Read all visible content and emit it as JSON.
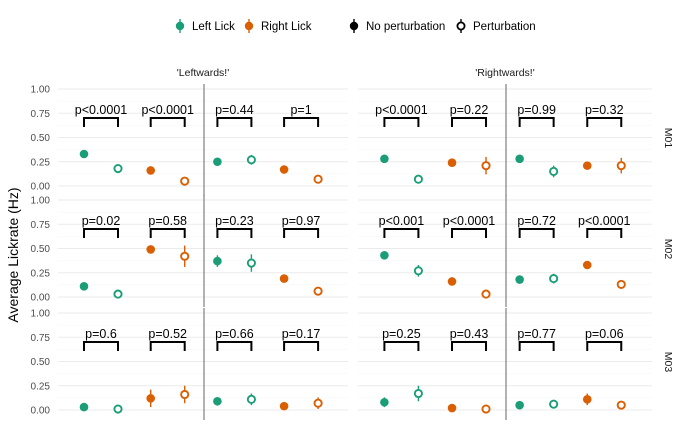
{
  "chart_data": {
    "type": "scatter",
    "ylabel": "Average Lickrate (Hz)",
    "yticks": [
      0,
      0.25,
      0.5,
      0.75,
      1.0
    ],
    "ytick_labels": [
      "0.00",
      "0.25",
      "0.50",
      "0.75",
      "1.00"
    ],
    "ylim": [
      0,
      1.0
    ],
    "grid": true,
    "legend_position": "top",
    "legend": {
      "colour_entries": [
        {
          "label": "Left Lick",
          "color": "#1b9e77"
        },
        {
          "label": "Right Lick",
          "color": "#d95f02"
        }
      ],
      "shape_entries": [
        {
          "label": "No perturbation",
          "marker": "filled"
        },
        {
          "label": "Perturbation",
          "marker": "open"
        }
      ]
    },
    "columns": [
      "'Leftwards!'",
      "'Rightwards!'"
    ],
    "rows": [
      "M01",
      "M02",
      "M03"
    ],
    "panels": [
      {
        "row": "M01",
        "column": "'Leftwards!'",
        "groups": [
          {
            "p": "p<0.0001",
            "lick": "Left Lick",
            "no_perturbation": 0.33,
            "perturbation": 0.18,
            "err_no": 0.02,
            "err_pert": 0.03
          },
          {
            "p": "p<0.0001",
            "lick": "Right Lick",
            "no_perturbation": 0.16,
            "perturbation": 0.05,
            "err_no": 0.02,
            "err_pert": 0.02
          },
          {
            "p": "p=0.44",
            "lick": "Left Lick",
            "no_perturbation": 0.25,
            "perturbation": 0.27,
            "err_no": 0.02,
            "err_pert": 0.05
          },
          {
            "p": "p=1",
            "lick": "Right Lick",
            "no_perturbation": 0.17,
            "perturbation": 0.07,
            "err_no": 0.02,
            "err_pert": 0.02
          }
        ]
      },
      {
        "row": "M01",
        "column": "'Rightwards!'",
        "groups": [
          {
            "p": "p<0.0001",
            "lick": "Left Lick",
            "no_perturbation": 0.28,
            "perturbation": 0.07,
            "err_no": 0.02,
            "err_pert": 0.03
          },
          {
            "p": "p=0.22",
            "lick": "Right Lick",
            "no_perturbation": 0.24,
            "perturbation": 0.21,
            "err_no": 0.02,
            "err_pert": 0.09
          },
          {
            "p": "p=0.99",
            "lick": "Left Lick",
            "no_perturbation": 0.28,
            "perturbation": 0.15,
            "err_no": 0.03,
            "err_pert": 0.06
          },
          {
            "p": "p=0.32",
            "lick": "Right Lick",
            "no_perturbation": 0.21,
            "perturbation": 0.21,
            "err_no": 0.02,
            "err_pert": 0.08
          }
        ]
      },
      {
        "row": "M02",
        "column": "'Leftwards!'",
        "groups": [
          {
            "p": "p=0.02",
            "lick": "Left Lick",
            "no_perturbation": 0.11,
            "perturbation": 0.03,
            "err_no": 0.02,
            "err_pert": 0.02
          },
          {
            "p": "p=0.58",
            "lick": "Right Lick",
            "no_perturbation": 0.49,
            "perturbation": 0.42,
            "err_no": 0.03,
            "err_pert": 0.11
          },
          {
            "p": "p=0.23",
            "lick": "Left Lick",
            "no_perturbation": 0.37,
            "perturbation": 0.35,
            "err_no": 0.06,
            "err_pert": 0.09
          },
          {
            "p": "p=0.97",
            "lick": "Right Lick",
            "no_perturbation": 0.19,
            "perturbation": 0.06,
            "err_no": 0.02,
            "err_pert": 0.03
          }
        ]
      },
      {
        "row": "M02",
        "column": "'Rightwards!'",
        "groups": [
          {
            "p": "p<0.001",
            "lick": "Left Lick",
            "no_perturbation": 0.43,
            "perturbation": 0.27,
            "err_no": 0.04,
            "err_pert": 0.06
          },
          {
            "p": "p<0.0001",
            "lick": "Right Lick",
            "no_perturbation": 0.16,
            "perturbation": 0.03,
            "err_no": 0.02,
            "err_pert": 0.03
          },
          {
            "p": "p=0.72",
            "lick": "Left Lick",
            "no_perturbation": 0.18,
            "perturbation": 0.19,
            "err_no": 0.02,
            "err_pert": 0.05
          },
          {
            "p": "p<0.0001",
            "lick": "Right Lick",
            "no_perturbation": 0.33,
            "perturbation": 0.13,
            "err_no": 0.02,
            "err_pert": 0.03
          }
        ]
      },
      {
        "row": "M03",
        "column": "'Leftwards!'",
        "groups": [
          {
            "p": "p=0.6",
            "lick": "Left Lick",
            "no_perturbation": 0.03,
            "perturbation": 0.01,
            "err_no": 0.01,
            "err_pert": 0.02
          },
          {
            "p": "p=0.52",
            "lick": "Right Lick",
            "no_perturbation": 0.12,
            "perturbation": 0.16,
            "err_no": 0.09,
            "err_pert": 0.09
          },
          {
            "p": "p=0.66",
            "lick": "Left Lick",
            "no_perturbation": 0.09,
            "perturbation": 0.11,
            "err_no": 0.03,
            "err_pert": 0.06
          },
          {
            "p": "p=0.17",
            "lick": "Right Lick",
            "no_perturbation": 0.04,
            "perturbation": 0.07,
            "err_no": 0.02,
            "err_pert": 0.06
          }
        ]
      },
      {
        "row": "M03",
        "column": "'Rightwards!'",
        "groups": [
          {
            "p": "p=0.25",
            "lick": "Left Lick",
            "no_perturbation": 0.08,
            "perturbation": 0.17,
            "err_no": 0.05,
            "err_pert": 0.08
          },
          {
            "p": "p=0.43",
            "lick": "Right Lick",
            "no_perturbation": 0.02,
            "perturbation": 0.01,
            "err_no": 0.01,
            "err_pert": 0.02
          },
          {
            "p": "p=0.77",
            "lick": "Left Lick",
            "no_perturbation": 0.05,
            "perturbation": 0.06,
            "err_no": 0.02,
            "err_pert": 0.03
          },
          {
            "p": "p=0.06",
            "lick": "Right Lick",
            "no_perturbation": 0.11,
            "perturbation": 0.05,
            "err_no": 0.06,
            "err_pert": 0.02
          }
        ]
      }
    ]
  }
}
